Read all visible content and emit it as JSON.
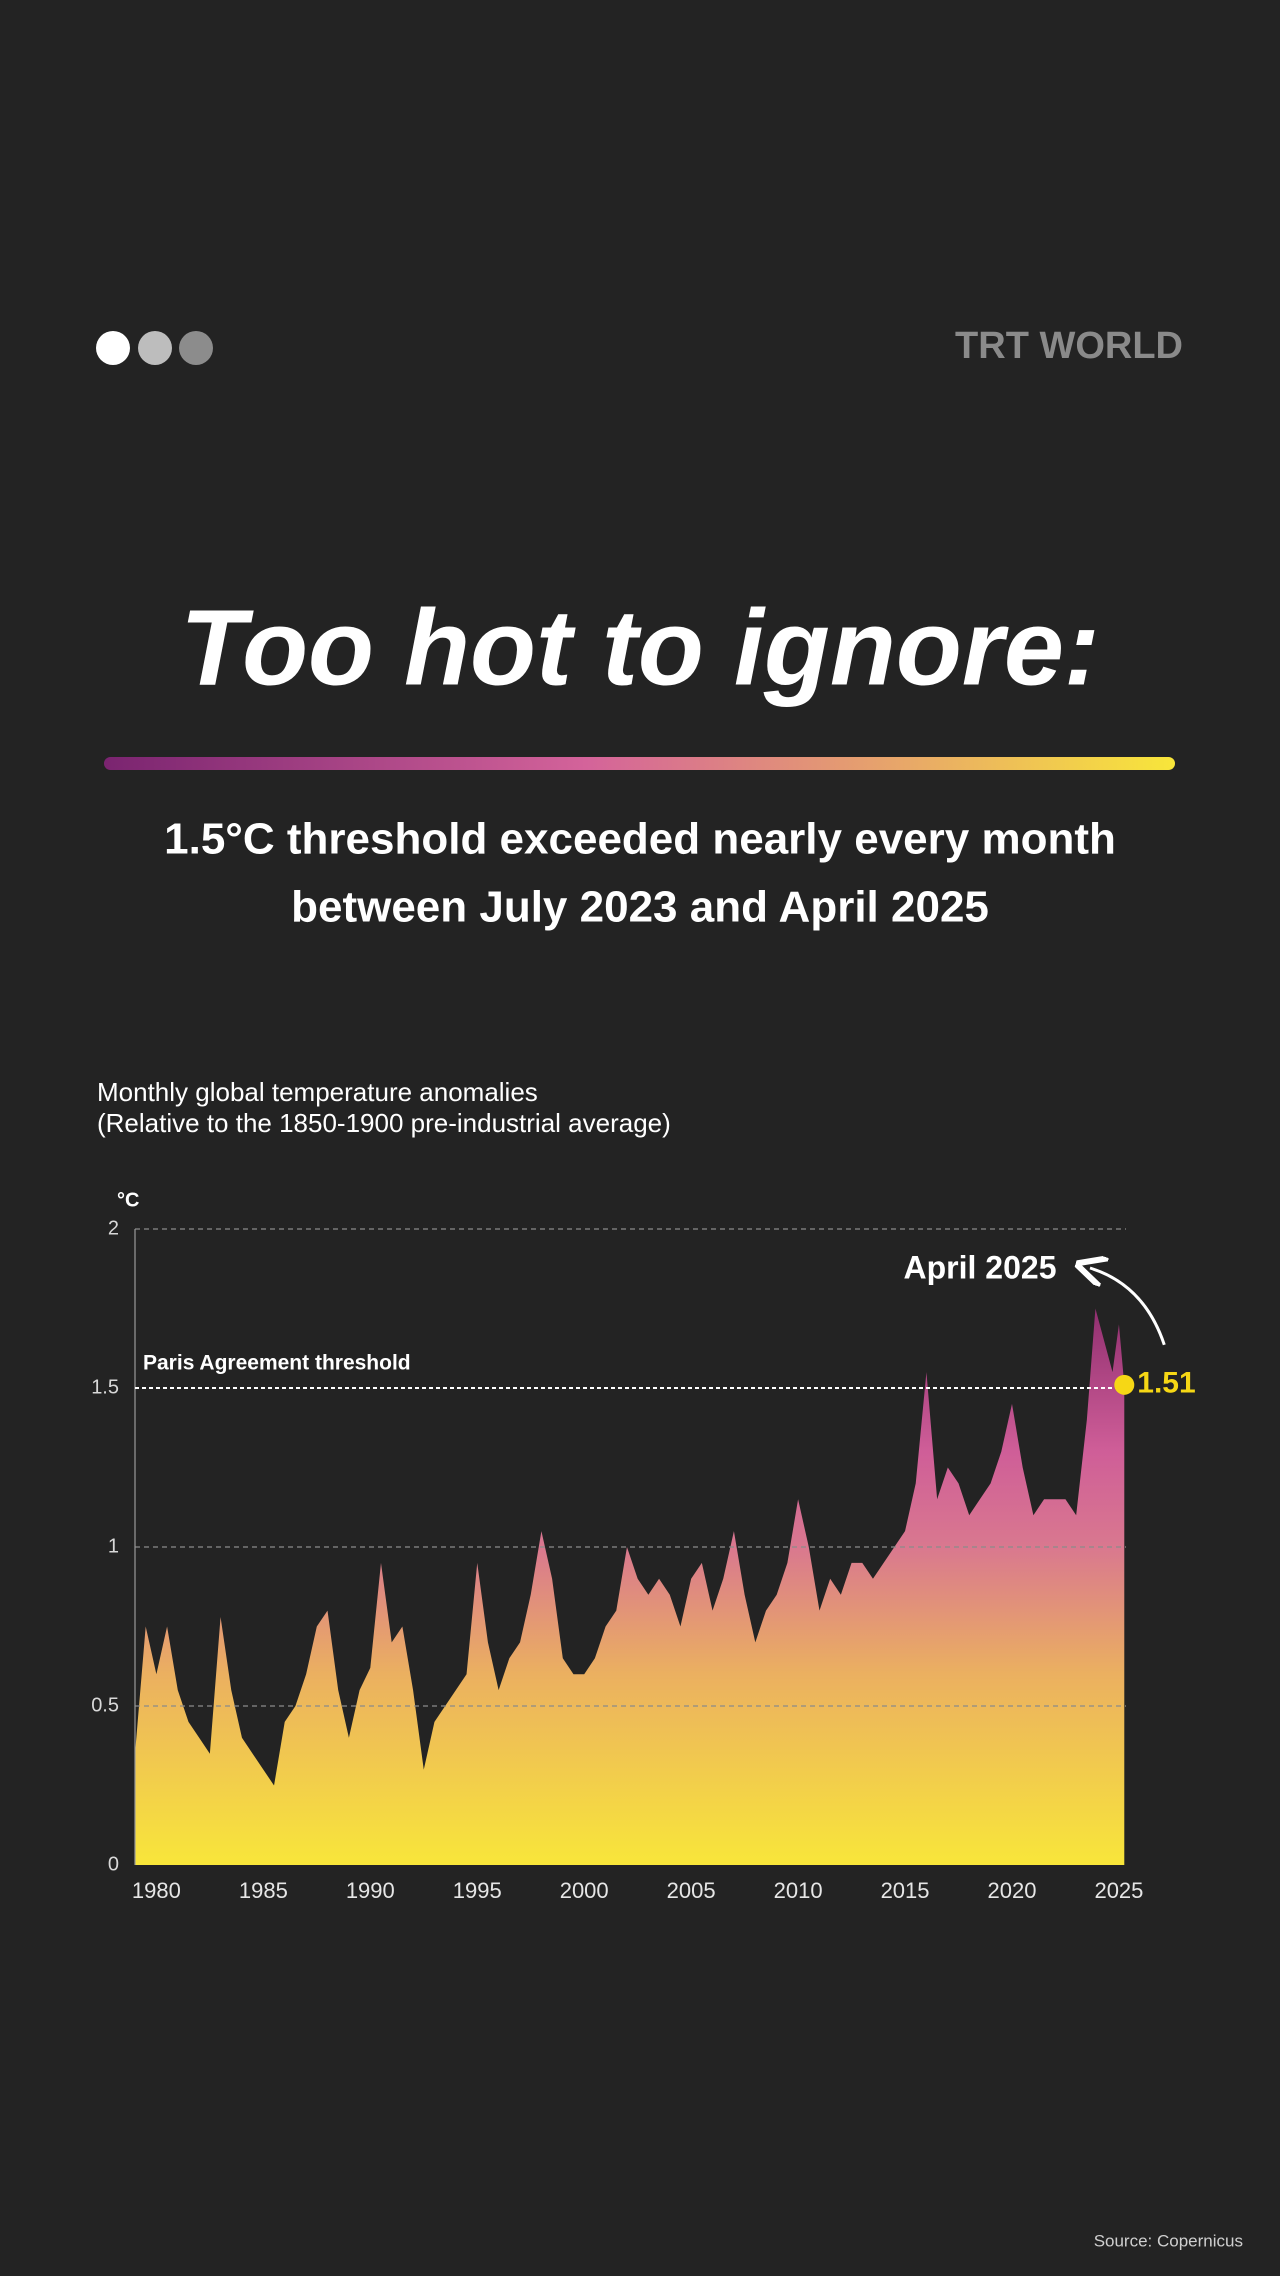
{
  "header": {
    "logo": "TRT WORLD"
  },
  "title": "Too hot to ignore:",
  "subtitle": [
    "1.5°C threshold exceeded nearly every month",
    "between July 2023 and April 2025"
  ],
  "source": "Source: Copernicus",
  "chart_data": {
    "type": "area",
    "description": [
      "Monthly global temperature anomalies",
      "(Relative to the 1850-1900 pre-industrial average)"
    ],
    "y_label": "°C",
    "x": [
      1979,
      1979.5,
      1980,
      1980.5,
      1981,
      1981.5,
      1982,
      1982.5,
      1983,
      1983.5,
      1984,
      1984.5,
      1985,
      1985.5,
      1986,
      1986.5,
      1987,
      1987.5,
      1988,
      1988.5,
      1989,
      1989.5,
      1990,
      1990.5,
      1991,
      1991.5,
      1992,
      1992.5,
      1993,
      1993.5,
      1994,
      1994.5,
      1995,
      1995.5,
      1996,
      1996.5,
      1997,
      1997.5,
      1998,
      1998.5,
      1999,
      1999.5,
      2000,
      2000.5,
      2001,
      2001.5,
      2002,
      2002.5,
      2003,
      2003.5,
      2004,
      2004.5,
      2005,
      2005.5,
      2006,
      2006.5,
      2007,
      2007.5,
      2008,
      2008.5,
      2009,
      2009.5,
      2010,
      2010.5,
      2011,
      2011.5,
      2012,
      2012.5,
      2013,
      2013.5,
      2014,
      2014.5,
      2015,
      2015.5,
      2016,
      2016.5,
      2017,
      2017.5,
      2018,
      2018.5,
      2019,
      2019.5,
      2020,
      2020.5,
      2021,
      2021.5,
      2022,
      2022.5,
      2023,
      2023.5,
      2023.9,
      2024.3,
      2024.7,
      2025,
      2025.25
    ],
    "values": [
      0.35,
      0.75,
      0.6,
      0.75,
      0.55,
      0.45,
      0.4,
      0.35,
      0.78,
      0.55,
      0.4,
      0.35,
      0.3,
      0.25,
      0.45,
      0.5,
      0.6,
      0.75,
      0.8,
      0.55,
      0.4,
      0.55,
      0.62,
      0.95,
      0.7,
      0.75,
      0.55,
      0.3,
      0.45,
      0.5,
      0.55,
      0.6,
      0.95,
      0.7,
      0.55,
      0.65,
      0.7,
      0.85,
      1.05,
      0.9,
      0.65,
      0.6,
      0.6,
      0.65,
      0.75,
      0.8,
      1.0,
      0.9,
      0.85,
      0.9,
      0.85,
      0.75,
      0.9,
      0.95,
      0.8,
      0.9,
      1.05,
      0.85,
      0.7,
      0.8,
      0.85,
      0.95,
      1.15,
      1.0,
      0.8,
      0.9,
      0.85,
      0.95,
      0.95,
      0.9,
      0.95,
      1.0,
      1.05,
      1.2,
      1.55,
      1.15,
      1.25,
      1.2,
      1.1,
      1.15,
      1.2,
      1.3,
      1.45,
      1.25,
      1.1,
      1.15,
      1.15,
      1.15,
      1.1,
      1.4,
      1.75,
      1.65,
      1.55,
      1.7,
      1.51
    ],
    "xlim": [
      1979,
      2025.33
    ],
    "xticks": [
      1980,
      1985,
      1990,
      1995,
      2000,
      2005,
      2010,
      2015,
      2020,
      2025
    ],
    "ylim": [
      0,
      2
    ],
    "yticks": [
      0,
      0.5,
      1,
      1.5,
      2
    ],
    "grid": true,
    "threshold": {
      "value": 1.5,
      "label": "Paris Agreement threshold"
    },
    "highlight": {
      "label": "April 2025",
      "x": 2025.25,
      "value": 1.51,
      "color": "#f6d715"
    }
  }
}
